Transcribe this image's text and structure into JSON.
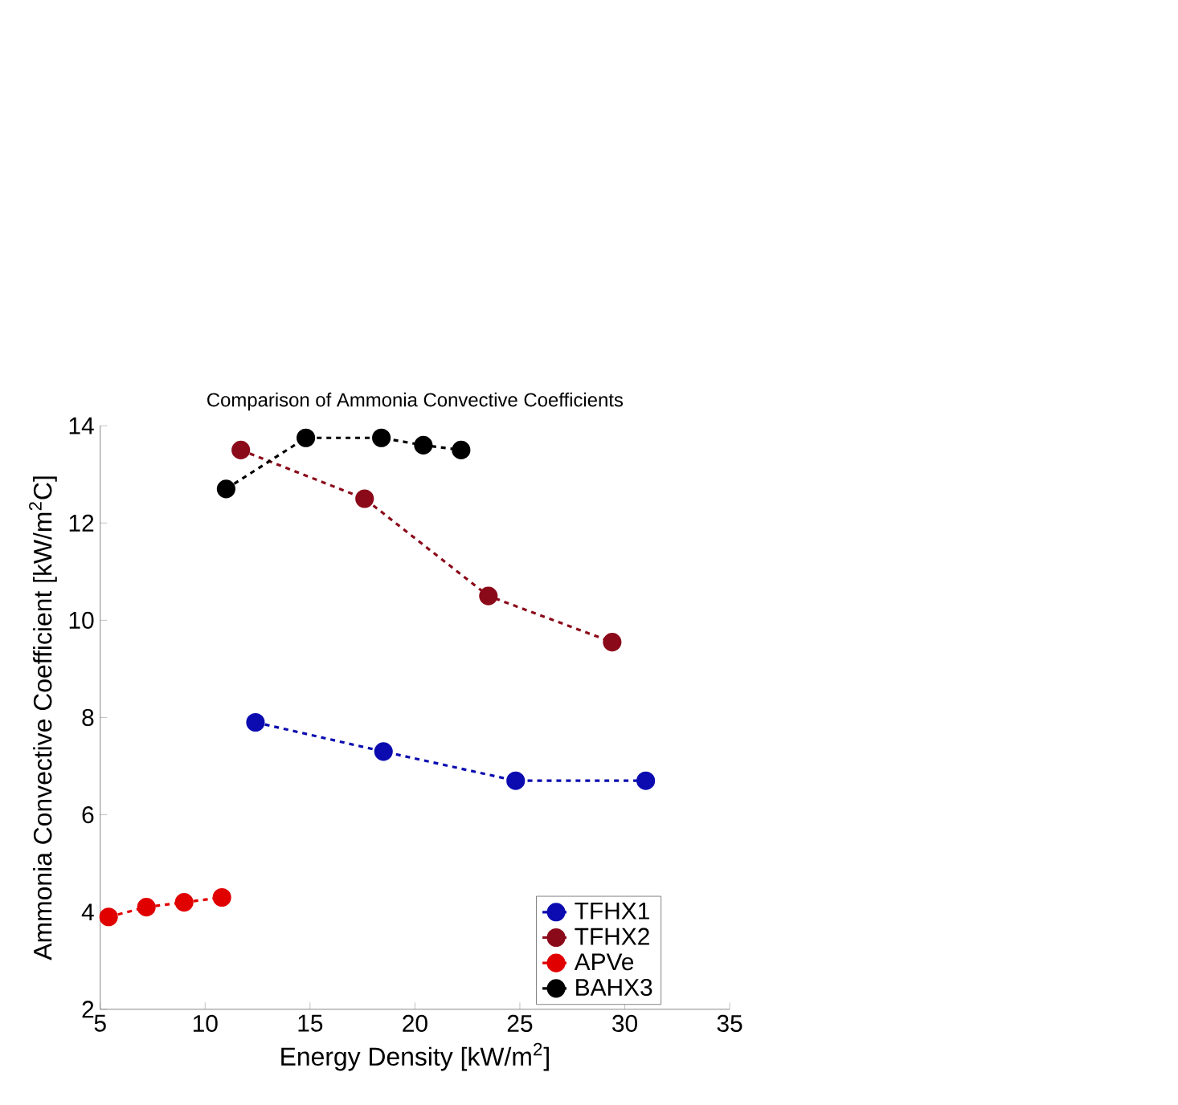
{
  "chart_data": {
    "type": "line",
    "title": "Comparison of Ammonia Convective Coefficients",
    "xlabel": "Energy Density [kW/m$^{2}$]",
    "ylabel": "Ammonia Convective Coefficient [kW/m$^{2}$C]",
    "xlim": [
      5,
      35
    ],
    "xticks": [
      5,
      10,
      15,
      20,
      25,
      30,
      35
    ],
    "ylim": [
      2,
      14
    ],
    "yticks": [
      2,
      4,
      6,
      8,
      10,
      12,
      14
    ],
    "grid": false,
    "legend": "bottom right",
    "marker": "circle",
    "line_style": "dashed",
    "series": [
      {
        "name": "TFHX1",
        "color": "#0b0bb0",
        "x": [
          12.4,
          18.5,
          24.8,
          31.0
        ],
        "values": [
          7.9,
          7.3,
          6.7,
          6.7
        ]
      },
      {
        "name": "TFHX2",
        "color": "#8b0a1a",
        "x": [
          11.7,
          17.6,
          23.5,
          29.4
        ],
        "values": [
          13.5,
          12.5,
          10.5,
          9.55
        ]
      },
      {
        "name": "APVe",
        "color": "#e00000",
        "x": [
          5.4,
          7.2,
          9.0,
          10.8
        ],
        "values": [
          3.9,
          4.1,
          4.2,
          4.3
        ]
      },
      {
        "name": "BAHX3",
        "color": "#000000",
        "x": [
          11.0,
          14.8,
          18.4,
          20.4,
          22.2
        ],
        "values": [
          12.7,
          13.75,
          13.75,
          13.6,
          13.5
        ]
      }
    ]
  }
}
